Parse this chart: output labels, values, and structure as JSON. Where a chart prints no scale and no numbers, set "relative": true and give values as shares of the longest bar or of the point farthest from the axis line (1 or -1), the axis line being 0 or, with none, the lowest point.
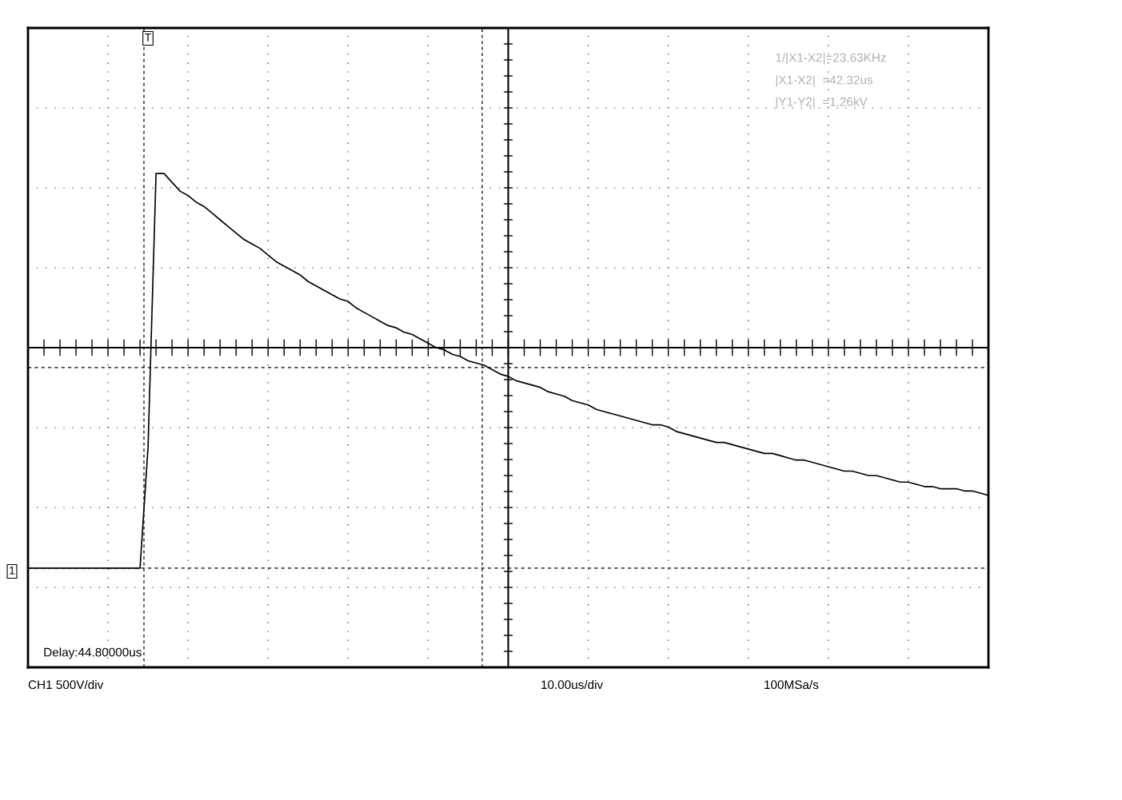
{
  "chart_data": {
    "type": "line",
    "relative": true,
    "grid": true,
    "line_style": "solid",
    "marker": "none",
    "categories": [
      null,
      null,
      null,
      null,
      null,
      null,
      null,
      null,
      null,
      null,
      null,
      null,
      null,
      null,
      null,
      null,
      null,
      null,
      null,
      null,
      null,
      null,
      null,
      null,
      null,
      null,
      null,
      null,
      null,
      null,
      null,
      null,
      null,
      null,
      null,
      null,
      null,
      null,
      null,
      null,
      null,
      null,
      null,
      null,
      null,
      null,
      null,
      null,
      null,
      null,
      null,
      null,
      null,
      null,
      null,
      null,
      null,
      null,
      null,
      null,
      null,
      null,
      null,
      null,
      null,
      null,
      null,
      null,
      null,
      null,
      null,
      null,
      null,
      null,
      null,
      null,
      null,
      null,
      null,
      null,
      null,
      null,
      null,
      null,
      null,
      null,
      null,
      null,
      null,
      null,
      null,
      null,
      null,
      null,
      null,
      null,
      null,
      null,
      null,
      null,
      null,
      null,
      null,
      null,
      null,
      null,
      null,
      null,
      null,
      null,
      null,
      null,
      null,
      null,
      null,
      null,
      null,
      null,
      null,
      null,
      null
    ],
    "series": [
      {
        "color": "#000000",
        "values": [
          -1.0,
          -1.0,
          -1.0,
          -1.0,
          -1.0,
          -1.0,
          -1.0,
          -1.0,
          -1.0,
          -1.0,
          -1.0,
          -1.0,
          -1.0,
          -1.0,
          -1.0,
          -0.45,
          0.79,
          0.79,
          0.75,
          0.71,
          0.69,
          0.66,
          0.64,
          0.61,
          0.58,
          0.55,
          0.52,
          0.49,
          0.47,
          0.45,
          0.42,
          0.39,
          0.37,
          0.35,
          0.33,
          0.3,
          0.28,
          0.26,
          0.24,
          0.22,
          0.21,
          0.18,
          0.16,
          0.14,
          0.12,
          0.1,
          0.09,
          0.07,
          0.06,
          0.04,
          0.02,
          0.0,
          -0.01,
          -0.03,
          -0.04,
          -0.06,
          -0.07,
          -0.08,
          -0.1,
          -0.12,
          -0.13,
          -0.15,
          -0.16,
          -0.17,
          -0.18,
          -0.2,
          -0.21,
          -0.22,
          -0.24,
          -0.25,
          -0.26,
          -0.28,
          -0.29,
          -0.3,
          -0.31,
          -0.32,
          -0.33,
          -0.34,
          -0.35,
          -0.35,
          -0.36,
          -0.38,
          -0.39,
          -0.4,
          -0.41,
          -0.42,
          -0.43,
          -0.43,
          -0.44,
          -0.45,
          -0.46,
          -0.47,
          -0.48,
          -0.48,
          -0.49,
          -0.5,
          -0.51,
          -0.51,
          -0.52,
          -0.53,
          -0.54,
          -0.55,
          -0.56,
          -0.56,
          -0.57,
          -0.58,
          -0.58,
          -0.59,
          -0.6,
          -0.61,
          -0.61,
          -0.62,
          -0.63,
          -0.63,
          -0.64,
          -0.64,
          -0.64,
          -0.65,
          -0.65,
          -0.66,
          -0.67
        ]
      }
    ],
    "ref_lines": [
      {
        "axis": "y",
        "value": -0.09,
        "label": null,
        "line_style": "dashed",
        "color": "#000000"
      },
      {
        "axis": "y",
        "value": -1.0,
        "label": null,
        "line_style": "dashed",
        "color": "#000000"
      }
    ],
    "annotations": [
      "1/|X1-X2|=23.63KHz",
      "|X1-X2|  =42.32us",
      "|Y1-Y2|  =1.26kV",
      "Delay:44.80000us",
      "CH1 500V/div",
      "10.00us/div",
      "100MSa/s",
      "T",
      "1"
    ]
  }
}
